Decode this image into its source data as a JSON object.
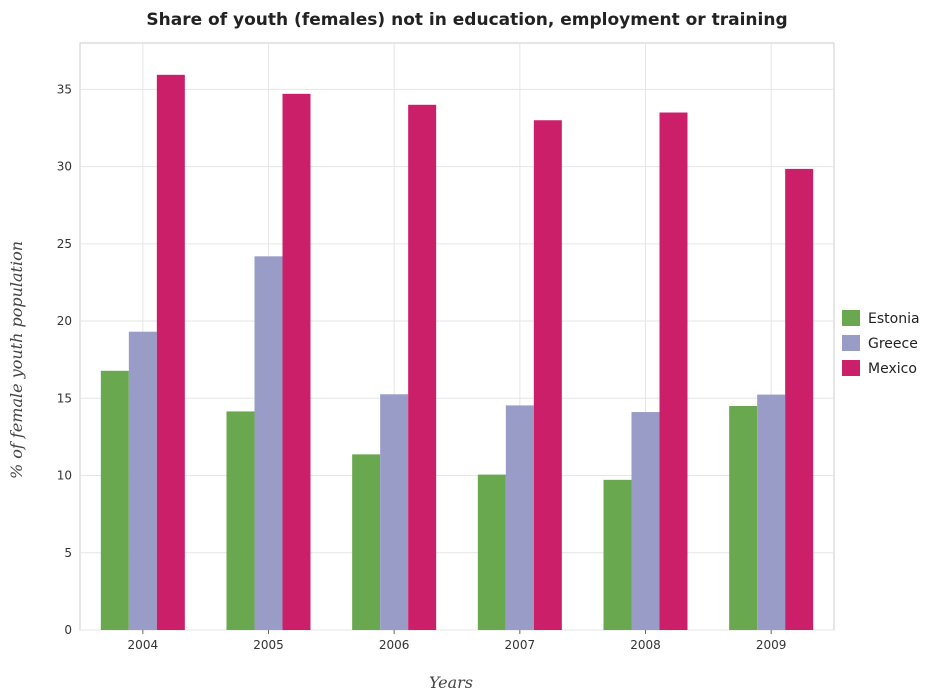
{
  "chart_data": {
    "type": "bar",
    "title": "Share of youth (females) not in education, employment or training",
    "xlabel": "Years",
    "ylabel": "% of female youth population",
    "categories": [
      "2004",
      "2005",
      "2006",
      "2007",
      "2008",
      "2009"
    ],
    "ylim": [
      0,
      38
    ],
    "yticks": [
      0,
      5,
      10,
      15,
      20,
      25,
      30,
      35
    ],
    "grid": true,
    "legend_position": "right",
    "series": [
      {
        "name": "Estonia",
        "color": "#6aa84f",
        "values": [
          16.78,
          14.15,
          11.37,
          10.06,
          9.72,
          14.5
        ]
      },
      {
        "name": "Greece",
        "color": "#9a9cc8",
        "values": [
          19.31,
          24.19,
          15.26,
          14.54,
          14.11,
          15.24
        ]
      },
      {
        "name": "Mexico",
        "color": "#cc1f6a",
        "values": [
          35.94,
          34.71,
          34.0,
          33.0,
          33.5,
          29.85
        ]
      }
    ]
  }
}
